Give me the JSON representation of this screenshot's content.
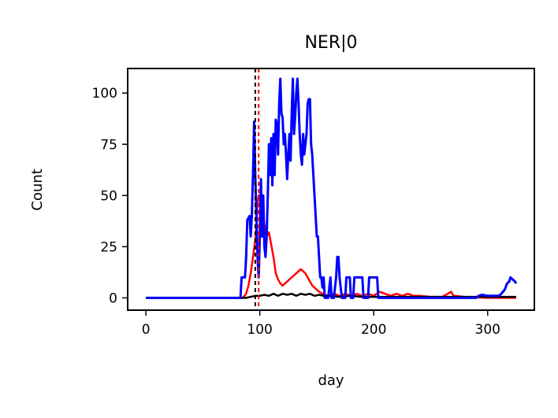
{
  "chart_data": {
    "type": "line",
    "title": "NER|0",
    "xlabel": "day",
    "ylabel": "Count",
    "xlim": [
      -16,
      341
    ],
    "ylim": [
      -6,
      112
    ],
    "xticks": [
      0,
      100,
      200,
      300
    ],
    "yticks": [
      0,
      25,
      50,
      75,
      100
    ],
    "grid": false,
    "legend": "none",
    "series": [
      {
        "color": "#ff0000",
        "width": 2.5,
        "points": [
          [
            0,
            0
          ],
          [
            85,
            0
          ],
          [
            88,
            2
          ],
          [
            90,
            6
          ],
          [
            92,
            12
          ],
          [
            94,
            20
          ],
          [
            96,
            28
          ],
          [
            97,
            36
          ],
          [
            98,
            46
          ],
          [
            99,
            50
          ],
          [
            100,
            48
          ],
          [
            102,
            42
          ],
          [
            104,
            36
          ],
          [
            106,
            30
          ],
          [
            108,
            32
          ],
          [
            110,
            26
          ],
          [
            112,
            20
          ],
          [
            114,
            12
          ],
          [
            116,
            9
          ],
          [
            118,
            7
          ],
          [
            120,
            6
          ],
          [
            122,
            7
          ],
          [
            124,
            8
          ],
          [
            126,
            9
          ],
          [
            128,
            10
          ],
          [
            130,
            11
          ],
          [
            132,
            12
          ],
          [
            134,
            13
          ],
          [
            136,
            14
          ],
          [
            138,
            13
          ],
          [
            140,
            12
          ],
          [
            142,
            10
          ],
          [
            144,
            8
          ],
          [
            146,
            6
          ],
          [
            148,
            5
          ],
          [
            150,
            4
          ],
          [
            152,
            3
          ],
          [
            155,
            2
          ],
          [
            160,
            1
          ],
          [
            165,
            2
          ],
          [
            170,
            1
          ],
          [
            175,
            2
          ],
          [
            180,
            1
          ],
          [
            185,
            2
          ],
          [
            190,
            1
          ],
          [
            195,
            2
          ],
          [
            200,
            1
          ],
          [
            205,
            3
          ],
          [
            210,
            2
          ],
          [
            215,
            1
          ],
          [
            220,
            2
          ],
          [
            225,
            1
          ],
          [
            230,
            2
          ],
          [
            235,
            1
          ],
          [
            240,
            1
          ],
          [
            250,
            0.5
          ],
          [
            260,
            0.5
          ],
          [
            265,
            2
          ],
          [
            268,
            3
          ],
          [
            270,
            1
          ],
          [
            280,
            0.5
          ],
          [
            300,
            0
          ],
          [
            325,
            0
          ]
        ]
      },
      {
        "color": "#000000",
        "width": 2.5,
        "points": [
          [
            0,
            0
          ],
          [
            88,
            0
          ],
          [
            92,
            0.5
          ],
          [
            96,
            1
          ],
          [
            100,
            1
          ],
          [
            104,
            1.5
          ],
          [
            108,
            1
          ],
          [
            112,
            2
          ],
          [
            116,
            1
          ],
          [
            120,
            2
          ],
          [
            124,
            1.5
          ],
          [
            128,
            2
          ],
          [
            132,
            1
          ],
          [
            136,
            2
          ],
          [
            140,
            1.5
          ],
          [
            144,
            2
          ],
          [
            148,
            1
          ],
          [
            152,
            1.5
          ],
          [
            156,
            1
          ],
          [
            160,
            1
          ],
          [
            170,
            0.5
          ],
          [
            180,
            1
          ],
          [
            190,
            0.5
          ],
          [
            200,
            0.5
          ],
          [
            220,
            0.5
          ],
          [
            250,
            0.5
          ],
          [
            300,
            0.5
          ],
          [
            325,
            0.5
          ]
        ]
      },
      {
        "color": "#0000ff",
        "width": 3,
        "points": [
          [
            0,
            0
          ],
          [
            83,
            0
          ],
          [
            84,
            10
          ],
          [
            87,
            10
          ],
          [
            88,
            20
          ],
          [
            89,
            38
          ],
          [
            90,
            39
          ],
          [
            91,
            40
          ],
          [
            92,
            30
          ],
          [
            93,
            40
          ],
          [
            94,
            60
          ],
          [
            95,
            86
          ],
          [
            96,
            60
          ],
          [
            97,
            40
          ],
          [
            98,
            20
          ],
          [
            99,
            10
          ],
          [
            100,
            30
          ],
          [
            101,
            58
          ],
          [
            102,
            30
          ],
          [
            103,
            50
          ],
          [
            104,
            25
          ],
          [
            105,
            20
          ],
          [
            106,
            30
          ],
          [
            107,
            50
          ],
          [
            108,
            75
          ],
          [
            109,
            60
          ],
          [
            110,
            78
          ],
          [
            111,
            55
          ],
          [
            112,
            80
          ],
          [
            113,
            60
          ],
          [
            114,
            87
          ],
          [
            115,
            85
          ],
          [
            116,
            70
          ],
          [
            117,
            95
          ],
          [
            118,
            107
          ],
          [
            119,
            90
          ],
          [
            120,
            88
          ],
          [
            121,
            75
          ],
          [
            122,
            80
          ],
          [
            123,
            70
          ],
          [
            124,
            58
          ],
          [
            125,
            70
          ],
          [
            126,
            80
          ],
          [
            127,
            67
          ],
          [
            128,
            90
          ],
          [
            129,
            107
          ],
          [
            130,
            80
          ],
          [
            131,
            88
          ],
          [
            132,
            100
          ],
          [
            133,
            107
          ],
          [
            134,
            95
          ],
          [
            135,
            80
          ],
          [
            136,
            70
          ],
          [
            137,
            65
          ],
          [
            138,
            80
          ],
          [
            139,
            70
          ],
          [
            140,
            75
          ],
          [
            141,
            80
          ],
          [
            142,
            95
          ],
          [
            143,
            97
          ],
          [
            144,
            97
          ],
          [
            145,
            75
          ],
          [
            146,
            70
          ],
          [
            147,
            60
          ],
          [
            148,
            50
          ],
          [
            149,
            40
          ],
          [
            150,
            30
          ],
          [
            151,
            30
          ],
          [
            152,
            20
          ],
          [
            153,
            10
          ],
          [
            154,
            10
          ],
          [
            155,
            5
          ],
          [
            156,
            10
          ],
          [
            157,
            0
          ],
          [
            160,
            0
          ],
          [
            161,
            5
          ],
          [
            162,
            10
          ],
          [
            163,
            0
          ],
          [
            165,
            0
          ],
          [
            166,
            5
          ],
          [
            167,
            10
          ],
          [
            168,
            20
          ],
          [
            169,
            20
          ],
          [
            170,
            10
          ],
          [
            171,
            5
          ],
          [
            172,
            0
          ],
          [
            175,
            0
          ],
          [
            176,
            10
          ],
          [
            179,
            10
          ],
          [
            180,
            0
          ],
          [
            182,
            0
          ],
          [
            183,
            10
          ],
          [
            190,
            10
          ],
          [
            191,
            0
          ],
          [
            195,
            0
          ],
          [
            196,
            10
          ],
          [
            203,
            10
          ],
          [
            204,
            0
          ],
          [
            290,
            0
          ],
          [
            292,
            1
          ],
          [
            295,
            1.5
          ],
          [
            300,
            1
          ],
          [
            305,
            1
          ],
          [
            310,
            1
          ],
          [
            312,
            2
          ],
          [
            315,
            4
          ],
          [
            317,
            7
          ],
          [
            319,
            8
          ],
          [
            320,
            10
          ],
          [
            322,
            9
          ],
          [
            324,
            8
          ],
          [
            325,
            7
          ]
        ]
      }
    ],
    "vlines": [
      {
        "x": 96,
        "color": "#000000",
        "dash": "5,4"
      },
      {
        "x": 99,
        "color": "#ff0000",
        "dash": "5,4"
      }
    ]
  }
}
